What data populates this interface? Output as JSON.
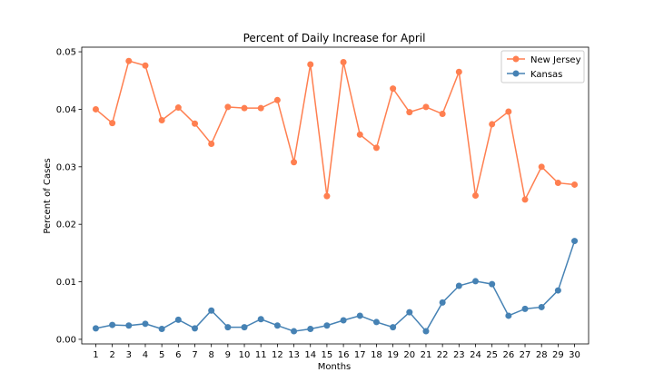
{
  "chart_data": {
    "type": "line",
    "title": "Percent of Daily Increase for April",
    "xlabel": "Months",
    "ylabel": "Percent of Cases",
    "x": [
      1,
      2,
      3,
      4,
      5,
      6,
      7,
      8,
      9,
      10,
      11,
      12,
      13,
      14,
      15,
      16,
      17,
      18,
      19,
      20,
      21,
      22,
      23,
      24,
      25,
      26,
      27,
      28,
      29,
      30
    ],
    "xlim": [
      0.15,
      30.85
    ],
    "ylim": [
      -0.0008,
      0.0508
    ],
    "yticks": [
      0.0,
      0.01,
      0.02,
      0.03,
      0.04,
      0.05
    ],
    "ytick_labels": [
      "0.00",
      "0.01",
      "0.02",
      "0.03",
      "0.04",
      "0.05"
    ],
    "grid": false,
    "legend_position": "top-right",
    "series": [
      {
        "name": "New Jersey",
        "color": "#ff7f50",
        "values": [
          0.04,
          0.0376,
          0.0484,
          0.0476,
          0.0381,
          0.0403,
          0.0375,
          0.034,
          0.0404,
          0.0402,
          0.0402,
          0.0416,
          0.0308,
          0.0478,
          0.0249,
          0.0482,
          0.0356,
          0.0333,
          0.0436,
          0.0395,
          0.0404,
          0.0392,
          0.0465,
          0.025,
          0.0374,
          0.0396,
          0.0243,
          0.03,
          0.0272,
          0.0269
        ]
      },
      {
        "name": "Kansas",
        "color": "#4682b4",
        "values": [
          0.0019,
          0.0025,
          0.0024,
          0.0027,
          0.0018,
          0.0034,
          0.0019,
          0.005,
          0.0021,
          0.0021,
          0.0035,
          0.0024,
          0.0014,
          0.0018,
          0.0024,
          0.0033,
          0.0041,
          0.003,
          0.0021,
          0.0047,
          0.0014,
          0.0064,
          0.0093,
          0.0101,
          0.0096,
          0.0041,
          0.0053,
          0.0056,
          0.0085,
          0.0171
        ]
      }
    ]
  }
}
